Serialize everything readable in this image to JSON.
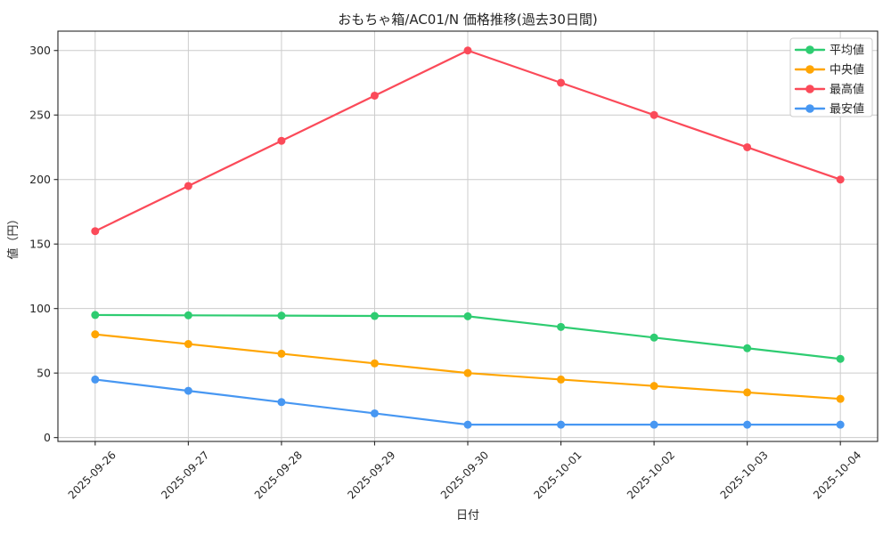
{
  "figure": {
    "title": "おもちゃ箱/AC01/N 価格推移(過去30日間)",
    "xlabel": "日付",
    "ylabel": "値（円）"
  },
  "chart_data": {
    "type": "line",
    "title": "おもちゃ箱/AC01/N 価格推移(過去30日間)",
    "xlabel": "日付",
    "ylabel": "値（円）",
    "categories": [
      "2025-09-26",
      "2025-09-27",
      "2025-09-28",
      "2025-09-29",
      "2025-09-30",
      "2025-10-01",
      "2025-10-02",
      "2025-10-03",
      "2025-10-04"
    ],
    "x_tick_rotation_deg": 45,
    "yticks": [
      0,
      50,
      100,
      150,
      200,
      250,
      300
    ],
    "ylim": [
      -3,
      315
    ],
    "grid": true,
    "legend": {
      "position": "upper-right",
      "background": "#ffffff",
      "border_color": "#cccccc",
      "entries": [
        "平均値",
        "中央値",
        "最高値",
        "最安値"
      ]
    },
    "series": [
      {
        "key": "average",
        "name": "平均値",
        "color": "#2ecc71",
        "values": [
          95,
          94.75,
          94.5,
          94.25,
          94,
          85.75,
          77.5,
          69.25,
          61
        ]
      },
      {
        "key": "median",
        "name": "中央値",
        "color": "#ffa502",
        "values": [
          80,
          72.5,
          65,
          57.5,
          50,
          45,
          40,
          35,
          30
        ]
      },
      {
        "key": "max",
        "name": "最高値",
        "color": "#fb4a59",
        "values": [
          160,
          195,
          230,
          265,
          300,
          275,
          250,
          225,
          200
        ]
      },
      {
        "key": "min",
        "name": "最安値",
        "color": "#4797f2",
        "values": [
          45,
          36.25,
          27.5,
          18.75,
          10,
          10,
          10,
          10,
          10
        ]
      }
    ],
    "colors": {
      "grid": "#cccccc",
      "spine": "#262626",
      "text": "#262626",
      "background": "#ffffff"
    }
  }
}
